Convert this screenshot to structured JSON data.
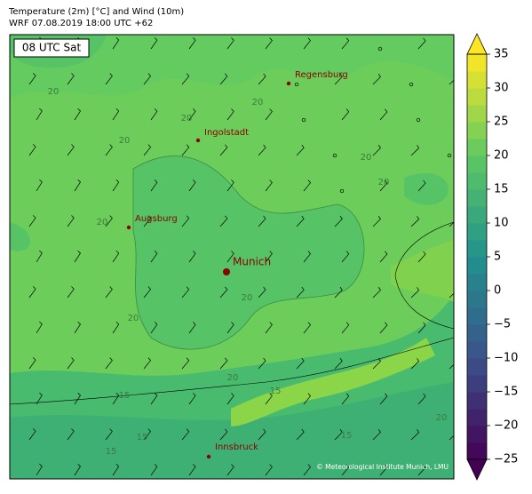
{
  "header": {
    "title": "Temperature (2m) [°C] and Wind (10m)",
    "subtitle": "WRF 07.08.2019 18:00 UTC +62"
  },
  "map": {
    "time_label": "08 UTC Sat",
    "cities": [
      {
        "name": "Regensburg"
      },
      {
        "name": "Ingolstadt"
      },
      {
        "name": "Augsburg"
      },
      {
        "name": "Munich"
      },
      {
        "name": "Innsbruck"
      }
    ],
    "contour_labels": [
      20,
      20,
      20,
      20,
      20,
      20,
      20,
      20,
      20,
      20,
      15,
      15,
      15,
      15,
      15,
      20
    ],
    "copyright": "© Meteorological Institute Munich, LMU"
  },
  "colorbar": {
    "colormap": "viridis",
    "lim": [
      -25,
      35
    ],
    "ticks": [
      {
        "value": -25,
        "label": "−25"
      },
      {
        "value": -20,
        "label": "−20"
      },
      {
        "value": -15,
        "label": "−15"
      },
      {
        "value": -10,
        "label": "−10"
      },
      {
        "value": -5,
        "label": "−5"
      },
      0,
      5,
      10,
      15,
      20,
      25,
      30,
      35
    ]
  }
}
